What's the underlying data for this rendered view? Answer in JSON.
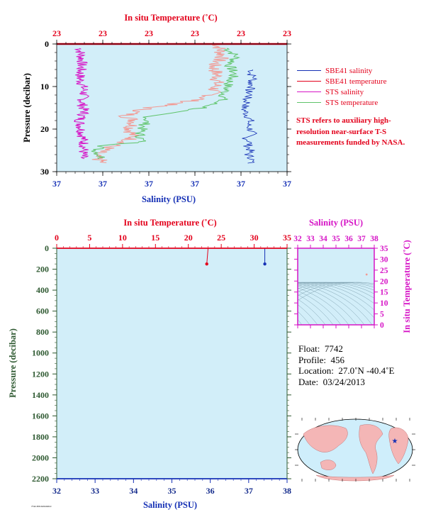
{
  "colors": {
    "plot_bg": "#d2eef9",
    "red": "#e3001b",
    "blue": "#1530b5",
    "magenta": "#d614c6",
    "green": "#5fc46a",
    "salmon": "#f29a94",
    "green_dark": "#2f5a32",
    "navy": "#142b8c",
    "map_land": "#f4b6b6",
    "map_ocean": "#cfeefb"
  },
  "top_panel": {
    "top_axis_title": "In situ Temperature (˚C)",
    "bottom_axis_title": "Salinity (PSU)",
    "left_axis_title": "Pressure (decibar)"
  },
  "bottom_panel": {
    "top_axis_title": "In situ Temperature (˚C)",
    "bottom_axis_title": "Salinity (PSU)",
    "left_axis_title": "Pressure (decibar)"
  },
  "ts_panel": {
    "top_axis_title": "Salinity (PSU)",
    "right_axis_title": "In situ Temperature (˚C)"
  },
  "legend": {
    "items": [
      {
        "label": "SBE41 salinity",
        "color": "#1530b5"
      },
      {
        "label": "SBE41 temperature",
        "color": "#e3001b"
      },
      {
        "label": "STS salinity",
        "color": "#d614c6"
      },
      {
        "label": "STS temperature",
        "color": "#5fc46a"
      }
    ],
    "note": "STS refers to auxiliary high-resolution near-surface T-S measurements funded by NASA."
  },
  "info": {
    "float_label": "Float:",
    "float_value": "7742",
    "profile_label": "Profile:",
    "profile_value": "456",
    "location_label": "Location:",
    "location_value": "27.0˚N  -40.4˚E",
    "date_label": "Date:",
    "date_value": "03/24/2013"
  },
  "footnote": "7742 456 03/24/2013",
  "chart_data": [
    {
      "type": "line",
      "panel": "near-surface profile",
      "xlabel": "Salinity (PSU)",
      "x2label": "In situ Temperature (˚C)",
      "ylabel": "Pressure (decibar)",
      "ylim": [
        30,
        0
      ],
      "x_tick_labels": [
        "37",
        "37",
        "37",
        "37",
        "37",
        "37"
      ],
      "x2_tick_labels": [
        "23",
        "23",
        "23",
        "23",
        "23",
        "23"
      ],
      "y_ticks": [
        0,
        10,
        20,
        30
      ],
      "series": [
        {
          "name": "SBE41 salinity",
          "pressure": [
            6,
            7,
            8,
            9,
            10,
            11,
            12,
            13,
            14,
            15,
            16,
            17,
            18,
            19,
            20,
            21,
            22,
            23,
            24,
            25,
            26,
            27,
            28
          ],
          "salinity_frac": [
            0.85,
            0.84,
            0.86,
            0.84,
            0.85,
            0.83,
            0.84,
            0.82,
            0.83,
            0.81,
            0.82,
            0.83,
            0.84,
            0.83,
            0.84,
            0.85,
            0.82,
            0.84,
            0.83,
            0.84,
            0.83,
            0.85,
            0.84
          ]
        },
        {
          "name": "SBE41 temperature",
          "pressure": [
            0,
            3,
            5,
            8,
            10,
            12,
            13,
            14,
            15,
            16,
            17,
            18,
            20,
            22,
            23,
            24,
            25,
            26,
            27,
            28
          ],
          "temperature_frac": [
            0.7,
            0.72,
            0.68,
            0.7,
            0.69,
            0.67,
            0.62,
            0.52,
            0.4,
            0.34,
            0.3,
            0.34,
            0.32,
            0.33,
            0.3,
            0.24,
            0.2,
            0.16,
            0.18,
            0.2
          ]
        },
        {
          "name": "STS salinity",
          "pressure": [
            1,
            4,
            8,
            11,
            14,
            16,
            18,
            21,
            24,
            27
          ],
          "salinity_frac": [
            0.1,
            0.11,
            0.1,
            0.12,
            0.11,
            0.12,
            0.1,
            0.11,
            0.12,
            0.11
          ]
        },
        {
          "name": "STS temperature",
          "pressure": [
            1,
            3,
            5,
            7,
            10,
            13,
            15,
            16,
            17,
            19,
            21,
            23,
            24,
            25,
            27
          ],
          "temperature_frac": [
            0.74,
            0.78,
            0.75,
            0.77,
            0.74,
            0.72,
            0.64,
            0.5,
            0.4,
            0.38,
            0.36,
            0.37,
            0.2,
            0.17,
            0.2
          ]
        }
      ]
    },
    {
      "type": "line",
      "panel": "full-depth profile",
      "xlabel": "Salinity (PSU)",
      "x2label": "In situ Temperature (˚C)",
      "ylabel": "Pressure (decibar)",
      "xlim": [
        32,
        38
      ],
      "x2lim": [
        0,
        35
      ],
      "ylim": [
        2200,
        0
      ],
      "x_ticks": [
        32,
        33,
        34,
        35,
        36,
        37,
        38
      ],
      "x2_ticks": [
        0,
        5,
        10,
        15,
        20,
        25,
        30,
        35
      ],
      "y_ticks": [
        0,
        200,
        400,
        600,
        800,
        1000,
        1200,
        1400,
        1600,
        1800,
        2000,
        2200
      ],
      "series": [
        {
          "name": "SBE41 salinity",
          "pressure": [
            0,
            150
          ],
          "salinity": [
            37.42,
            37.42
          ]
        },
        {
          "name": "SBE41 temperature",
          "pressure": [
            0,
            150
          ],
          "temperature": [
            23.0,
            22.8
          ]
        }
      ]
    },
    {
      "type": "scatter",
      "panel": "T-S diagram",
      "xlabel": "Salinity (PSU)",
      "ylabel": "In situ Temperature (˚C)",
      "xlim": [
        32,
        38
      ],
      "ylim": [
        0,
        35
      ],
      "x_ticks": [
        32,
        33,
        34,
        35,
        36,
        37,
        38
      ],
      "y_ticks": [
        0,
        5,
        10,
        15,
        20,
        25,
        30,
        35
      ],
      "points": [
        {
          "salinity": 37.4,
          "temperature": 23.0
        }
      ]
    }
  ]
}
